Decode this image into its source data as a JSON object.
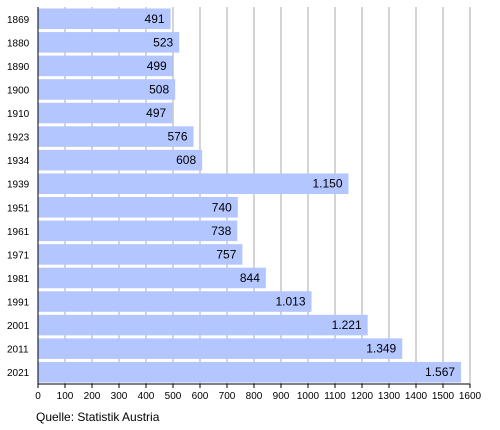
{
  "chart_data": {
    "type": "bar",
    "orientation": "horizontal",
    "categories": [
      "1869",
      "1880",
      "1890",
      "1900",
      "1910",
      "1923",
      "1934",
      "1939",
      "1951",
      "1961",
      "1971",
      "1981",
      "1991",
      "2001",
      "2011",
      "2021"
    ],
    "values": [
      491,
      523,
      499,
      508,
      497,
      576,
      608,
      1150,
      740,
      738,
      757,
      844,
      1013,
      1221,
      1349,
      1567
    ],
    "value_labels": [
      "491",
      "523",
      "499",
      "508",
      "497",
      "576",
      "608",
      "1.150",
      "740",
      "738",
      "757",
      "844",
      "1.013",
      "1.221",
      "1.349",
      "1.567"
    ],
    "xlim": [
      0,
      1600
    ],
    "x_ticks": [
      0,
      100,
      200,
      300,
      400,
      500,
      600,
      700,
      800,
      900,
      1000,
      1100,
      1200,
      1300,
      1400,
      1500,
      1600
    ],
    "grid": true,
    "bar_color": "#b3c6ff",
    "grid_color": "#aaaaaa",
    "title": "",
    "xlabel": "",
    "ylabel": ""
  },
  "source_note": "Quelle: Statistik Austria"
}
